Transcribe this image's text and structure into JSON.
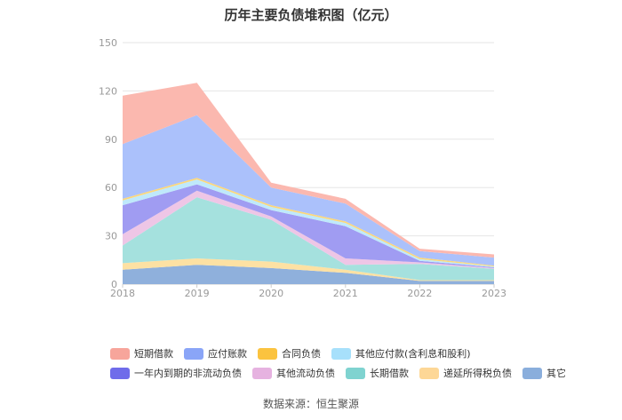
{
  "chart_data": {
    "type": "area",
    "stacked": true,
    "title": "历年主要负债堆积图（亿元）",
    "x": [
      "2018",
      "2019",
      "2020",
      "2021",
      "2022",
      "2023"
    ],
    "ylim": [
      0,
      150
    ],
    "yticks": [
      0,
      30,
      60,
      90,
      120,
      150
    ],
    "grid": true,
    "legend_position": "bottom",
    "series": [
      {
        "name": "其它",
        "color": "#8fb0dc",
        "values": [
          9,
          12,
          10,
          7,
          2,
          2
        ]
      },
      {
        "name": "递延所得税负债",
        "color": "#fde1a3",
        "values": [
          4,
          4,
          4,
          2,
          0.5,
          0.5
        ]
      },
      {
        "name": "长期借款",
        "color": "#a5e1de",
        "values": [
          11,
          38,
          26,
          3,
          10,
          7
        ]
      },
      {
        "name": "其他流动负债",
        "color": "#eec6e6",
        "values": [
          7,
          4,
          2,
          4,
          1,
          0.5
        ]
      },
      {
        "name": "一年内到期的非流动负债",
        "color": "#a09cf2",
        "values": [
          18,
          4,
          4,
          20,
          1,
          0.5
        ]
      },
      {
        "name": "其他应付款(含利息和股利)",
        "color": "#bfe9fb",
        "values": [
          3,
          3,
          2,
          2,
          1,
          0.5
        ]
      },
      {
        "name": "合同负债",
        "color": "#fcd77a",
        "values": [
          1,
          1,
          1,
          1,
          1,
          0.5
        ]
      },
      {
        "name": "应付账款",
        "color": "#abc1fb",
        "values": [
          34,
          39,
          11,
          11,
          4,
          5
        ]
      },
      {
        "name": "短期借款",
        "color": "#fbb8af",
        "values": [
          30,
          20,
          3,
          3,
          1.5,
          2
        ]
      }
    ]
  },
  "legend_rows": [
    [
      "短期借款",
      "应付账款",
      "合同负债",
      "其他应付款(含利息和股利)"
    ],
    [
      "一年内到期的非流动负债",
      "其他流动负债",
      "长期借款",
      "递延所得税负债",
      "其它"
    ]
  ],
  "legend_colors": {
    "短期借款": "#f7a59b",
    "应付账款": "#8aa5f7",
    "合同负债": "#fbc33f",
    "其他应付款(含利息和股利)": "#a7e0fb",
    "一年内到期的非流动负债": "#6f6cea",
    "其他流动负债": "#e6b2e0",
    "长期借款": "#7fd3d0",
    "递延所得税负债": "#fdd796",
    "其它": "#8aaedc"
  },
  "source_text": "数据来源：恒生聚源"
}
